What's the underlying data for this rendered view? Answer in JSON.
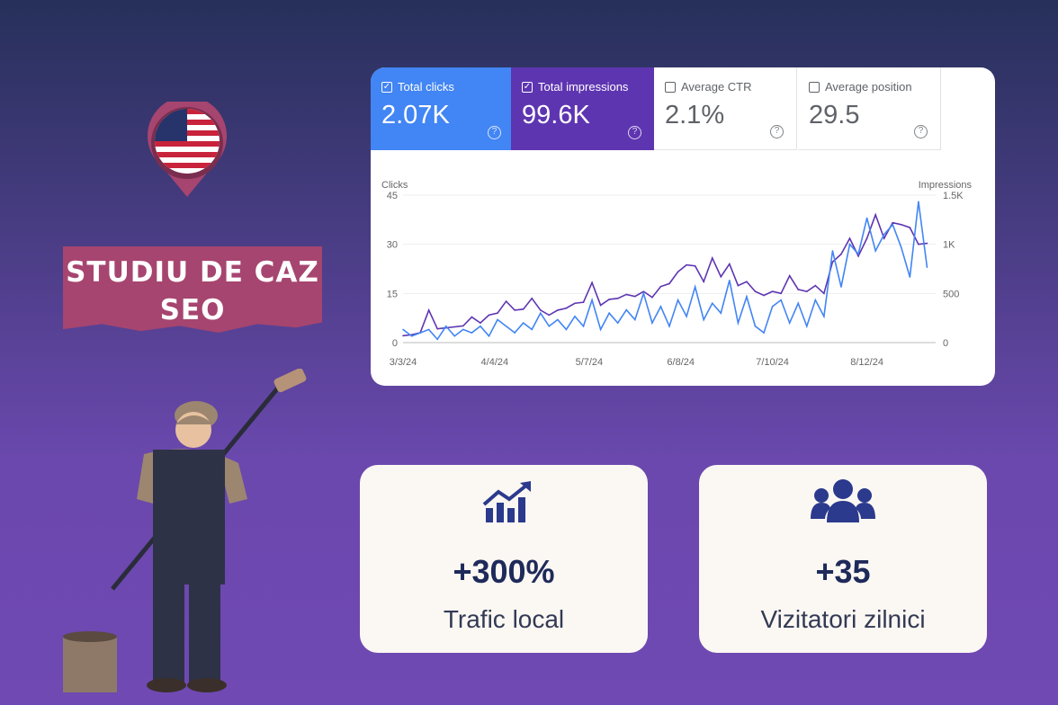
{
  "banner": {
    "line1": "STUDIU DE CAZ",
    "line2": "SEO"
  },
  "metrics": [
    {
      "label": "Total clicks",
      "value": "2.07K",
      "checked": true,
      "color": "#4285f4"
    },
    {
      "label": "Total impressions",
      "value": "99.6K",
      "checked": true,
      "color": "#5e35b1"
    },
    {
      "label": "Average CTR",
      "value": "2.1%",
      "checked": false
    },
    {
      "label": "Average position",
      "value": "29.5",
      "checked": false
    }
  ],
  "chart_data": {
    "type": "line",
    "left_axis_label": "Clicks",
    "right_axis_label": "Impressions",
    "left_ticks": [
      "0",
      "15",
      "30",
      "45"
    ],
    "right_ticks": [
      "0",
      "500",
      "1K",
      "1.5K"
    ],
    "ylim_left": [
      0,
      45
    ],
    "ylim_right": [
      0,
      1500
    ],
    "x_ticks": [
      "3/3/24",
      "4/4/24",
      "5/7/24",
      "6/8/24",
      "7/10/24",
      "8/12/24"
    ],
    "grid": true,
    "x": [
      "3/3/24",
      "3/6/24",
      "3/9/24",
      "3/12/24",
      "3/15/24",
      "3/18/24",
      "3/21/24",
      "3/24/24",
      "3/27/24",
      "3/30/24",
      "4/2/24",
      "4/5/24",
      "4/8/24",
      "4/11/24",
      "4/14/24",
      "4/17/24",
      "4/20/24",
      "4/23/24",
      "4/26/24",
      "4/29/24",
      "5/2/24",
      "5/5/24",
      "5/8/24",
      "5/11/24",
      "5/14/24",
      "5/17/24",
      "5/20/24",
      "5/23/24",
      "5/26/24",
      "5/29/24",
      "6/1/24",
      "6/4/24",
      "6/7/24",
      "6/10/24",
      "6/13/24",
      "6/16/24",
      "6/19/24",
      "6/22/24",
      "6/25/24",
      "6/28/24",
      "7/1/24",
      "7/4/24",
      "7/7/24",
      "7/10/24",
      "7/13/24",
      "7/16/24",
      "7/19/24",
      "7/22/24",
      "7/25/24",
      "7/28/24",
      "7/31/24",
      "8/3/24",
      "8/6/24",
      "8/9/24",
      "8/12/24",
      "8/15/24",
      "8/18/24",
      "8/21/24",
      "8/24/24",
      "8/27/24",
      "8/30/24",
      "9/2/24"
    ],
    "series": [
      {
        "name": "Clicks",
        "axis": "left",
        "color": "#4285f4",
        "values": [
          4,
          2,
          3,
          4,
          1,
          5,
          2,
          4,
          3,
          5,
          2,
          7,
          5,
          3,
          6,
          4,
          9,
          5,
          7,
          4,
          8,
          5,
          13,
          4,
          9,
          6,
          10,
          7,
          15,
          6,
          11,
          5,
          13,
          8,
          17,
          7,
          12,
          9,
          19,
          6,
          14,
          5,
          3,
          11,
          13,
          6,
          12,
          5,
          13,
          8,
          28,
          17,
          30,
          27,
          38,
          28,
          33,
          36,
          29,
          20,
          43,
          23
        ]
      },
      {
        "name": "Impressions",
        "axis": "right",
        "color": "#5e35b1",
        "values": [
          70,
          80,
          100,
          330,
          140,
          150,
          160,
          170,
          260,
          200,
          280,
          300,
          420,
          330,
          340,
          450,
          330,
          280,
          330,
          350,
          400,
          410,
          610,
          380,
          440,
          450,
          490,
          470,
          520,
          460,
          570,
          600,
          720,
          790,
          780,
          620,
          860,
          670,
          800,
          580,
          620,
          520,
          480,
          520,
          500,
          680,
          540,
          520,
          580,
          500,
          820,
          900,
          1060,
          880,
          1060,
          1300,
          1060,
          1220,
          1200,
          1170,
          1000,
          1010
        ]
      }
    ]
  },
  "stats": [
    {
      "icon": "chart-growth-icon",
      "value": "+300%",
      "label": "Trafic local"
    },
    {
      "icon": "users-group-icon",
      "value": "+35",
      "label": "Vizitatori zilnici"
    }
  ]
}
